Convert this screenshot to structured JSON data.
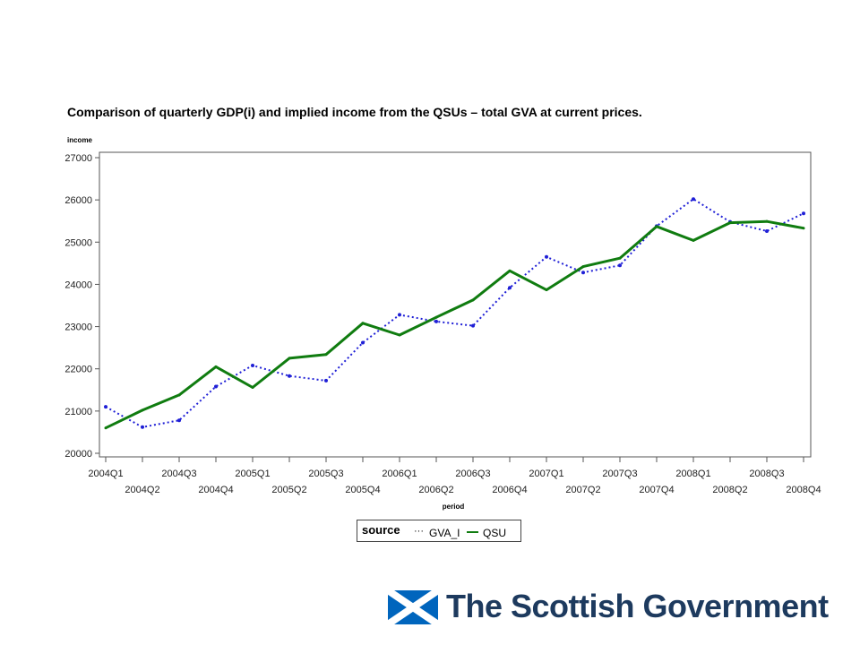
{
  "chart_data": {
    "type": "line",
    "title": "Comparison of quarterly GDP(i) and implied income from the QSUs – total GVA at current prices.",
    "ylabel": "income",
    "xlabel": "period",
    "ylim": [
      20000,
      27000
    ],
    "yticks": [
      20000,
      21000,
      22000,
      23000,
      24000,
      25000,
      26000,
      27000
    ],
    "categories": [
      "2004Q1",
      "2004Q2",
      "2004Q3",
      "2004Q4",
      "2005Q1",
      "2005Q2",
      "2005Q3",
      "2005Q4",
      "2006Q1",
      "2006Q2",
      "2006Q3",
      "2006Q4",
      "2007Q1",
      "2007Q2",
      "2007Q3",
      "2007Q4",
      "2008Q1",
      "2008Q2",
      "2008Q3",
      "2008Q4"
    ],
    "grid": false,
    "legend_position": "bottom",
    "legend_title": "source",
    "series": [
      {
        "name": "GVA_I",
        "style": "dotted",
        "color": "#1f1fd6",
        "values": [
          21100,
          20620,
          20780,
          21580,
          22080,
          21830,
          21720,
          22620,
          23280,
          23120,
          23020,
          23920,
          24650,
          24280,
          24450,
          25380,
          26020,
          25480,
          25260,
          25680
        ]
      },
      {
        "name": "QSU",
        "style": "solid",
        "color": "#107c10",
        "values": [
          20600,
          21020,
          21380,
          22050,
          21560,
          22250,
          22340,
          23080,
          22800,
          23220,
          23630,
          24320,
          23870,
          24420,
          24620,
          25370,
          25040,
          25460,
          25490,
          25330
        ]
      }
    ]
  },
  "logo": {
    "text": "The Scottish Government",
    "saltire_blue": "#0065bd",
    "text_color": "#1d3a5e"
  }
}
